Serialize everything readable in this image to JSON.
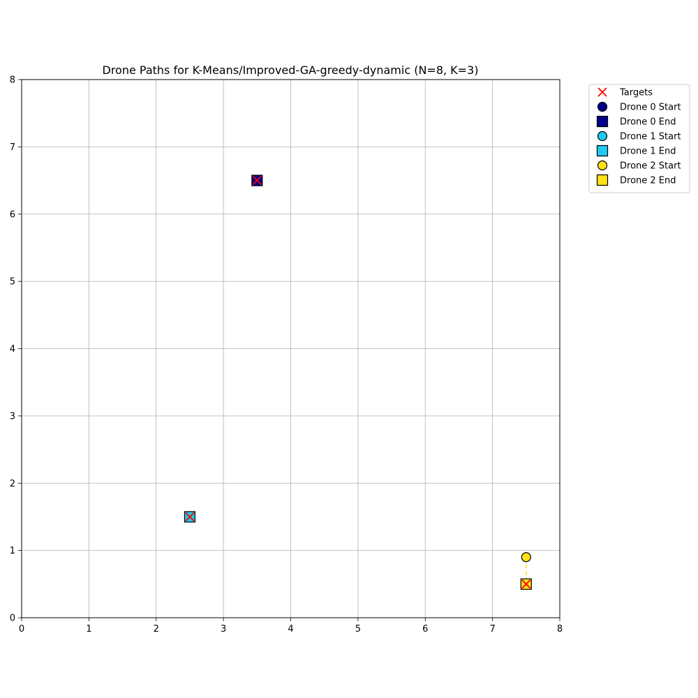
{
  "chart_data": {
    "type": "scatter",
    "title": "Drone Paths for K-Means/Improved-GA-greedy-dynamic (N=8, K=3)",
    "xlabel": "",
    "ylabel": "",
    "xlim": [
      0,
      8
    ],
    "ylim": [
      0,
      8
    ],
    "xticks": [
      "0",
      "1",
      "2",
      "3",
      "4",
      "5",
      "6",
      "7",
      "8"
    ],
    "yticks": [
      "0",
      "1",
      "2",
      "3",
      "4",
      "5",
      "6",
      "7",
      "8"
    ],
    "grid": true,
    "legend_position": "outside-top-right",
    "targets": {
      "name": "Targets",
      "color": "#ff0000",
      "marker": "x",
      "points": [
        [
          3.5,
          6.5
        ],
        [
          2.5,
          1.5
        ],
        [
          7.5,
          0.5
        ]
      ]
    },
    "drones": [
      {
        "id": 0,
        "color": "#00008b",
        "start": [
          3.5,
          6.5
        ],
        "end": [
          3.5,
          6.5
        ],
        "path": [
          [
            3.5,
            6.5
          ],
          [
            3.5,
            6.5
          ]
        ],
        "start_label": "Drone 0 Start",
        "end_label": "Drone 0 End"
      },
      {
        "id": 1,
        "color": "#1ecbf0",
        "start": [
          2.5,
          1.5
        ],
        "end": [
          2.5,
          1.5
        ],
        "path": [
          [
            2.5,
            1.5
          ],
          [
            2.5,
            1.5
          ]
        ],
        "start_label": "Drone 1 Start",
        "end_label": "Drone 1 End"
      },
      {
        "id": 2,
        "color": "#ffe01a",
        "start": [
          7.5,
          0.9
        ],
        "end": [
          7.5,
          0.5
        ],
        "path": [
          [
            7.5,
            0.9
          ],
          [
            7.5,
            0.5
          ]
        ],
        "start_label": "Drone 2 Start",
        "end_label": "Drone 2 End"
      }
    ],
    "legend": [
      {
        "label": "Targets",
        "marker": "x",
        "color": "#ff0000"
      },
      {
        "label": "Drone 0 Start",
        "marker": "circle",
        "color": "#00008b"
      },
      {
        "label": "Drone 0 End",
        "marker": "square",
        "color": "#00008b"
      },
      {
        "label": "Drone 1 Start",
        "marker": "circle",
        "color": "#1ecbf0"
      },
      {
        "label": "Drone 1 End",
        "marker": "square",
        "color": "#1ecbf0"
      },
      {
        "label": "Drone 2 Start",
        "marker": "circle",
        "color": "#ffe01a"
      },
      {
        "label": "Drone 2 End",
        "marker": "square",
        "color": "#ffe01a"
      }
    ]
  }
}
